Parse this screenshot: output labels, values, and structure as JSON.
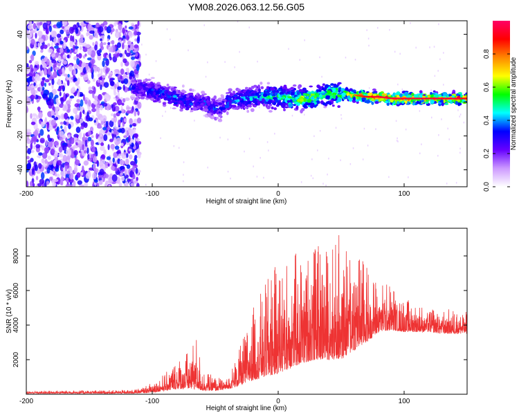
{
  "chart_data": [
    {
      "type": "heatmap",
      "title": "YM08.2026.063.12.56.G05",
      "xlabel": "Height of straight line (km)",
      "ylabel": "Frequency (Hz)",
      "xlim": [
        -200,
        150
      ],
      "ylim": [
        -50,
        48
      ],
      "xticks": [
        "-200",
        "-100",
        "0",
        "100"
      ],
      "yticks": [
        "-40",
        "-20",
        "0",
        "20",
        "40"
      ],
      "colorbar": {
        "label": "Normalized spectral amplitude",
        "range": [
          0,
          1
        ],
        "ticks": [
          "0.0",
          "0.2",
          "0.4",
          "0.6",
          "0.8"
        ],
        "colors": [
          "#ffffff",
          "#cc99ff",
          "#6600ff",
          "#0000ff",
          "#00ffff",
          "#00ff00",
          "#ffff00",
          "#ff8800",
          "#ff0000",
          "#ff0066"
        ]
      },
      "ridge": {
        "description_points_x": [
          -110,
          -100,
          -90,
          -80,
          -70,
          -60,
          -50,
          -45,
          -40,
          -30,
          -20,
          -10,
          0,
          10,
          20,
          30,
          40,
          50,
          60,
          70,
          80,
          90,
          100,
          110,
          120,
          130,
          140,
          150
        ],
        "frequency_hz": [
          8,
          6,
          5,
          2,
          0,
          0,
          -4,
          -4,
          0,
          2,
          3,
          3,
          3,
          2,
          2,
          3,
          5,
          5,
          4,
          3,
          3,
          2,
          2,
          2,
          2,
          2,
          2,
          2
        ],
        "peak_amplitude": [
          0.35,
          0.4,
          0.4,
          0.45,
          0.4,
          0.4,
          0.4,
          0.35,
          0.45,
          0.5,
          0.5,
          0.55,
          0.6,
          0.65,
          0.7,
          0.7,
          0.65,
          0.7,
          0.8,
          0.9,
          0.95,
          0.95,
          0.95,
          0.95,
          0.95,
          0.95,
          0.95,
          0.9
        ]
      }
    },
    {
      "type": "line",
      "xlabel": "Height of straight line (km)",
      "ylabel": "SNR (10 * v/v)",
      "xlim": [
        -200,
        150
      ],
      "ylim": [
        0,
        9600
      ],
      "xticks": [
        "-200",
        "-100",
        "0",
        "100"
      ],
      "yticks": [
        "2000",
        "4000",
        "6000",
        "8000"
      ],
      "color": "#ee3333",
      "envelope": {
        "x": [
          -200,
          -120,
          -110,
          -100,
          -90,
          -80,
          -70,
          -65,
          -60,
          -50,
          -40,
          -30,
          -20,
          -10,
          0,
          10,
          20,
          30,
          40,
          50,
          60,
          70,
          80,
          90,
          100,
          110,
          120,
          130,
          140,
          150
        ],
        "upper": [
          200,
          250,
          350,
          700,
          1200,
          2000,
          2600,
          3400,
          1400,
          1000,
          900,
          2800,
          5000,
          6500,
          7700,
          8000,
          8500,
          8600,
          8500,
          9500,
          8800,
          7500,
          6500,
          6400,
          5600,
          5200,
          5100,
          5000,
          4900,
          4800
        ],
        "lower": [
          50,
          50,
          60,
          100,
          200,
          300,
          300,
          300,
          200,
          200,
          300,
          500,
          800,
          1000,
          1200,
          1500,
          1800,
          2000,
          2000,
          2000,
          2500,
          3000,
          3600,
          3700,
          3600,
          3600,
          3600,
          3500,
          3500,
          3500
        ]
      }
    }
  ]
}
